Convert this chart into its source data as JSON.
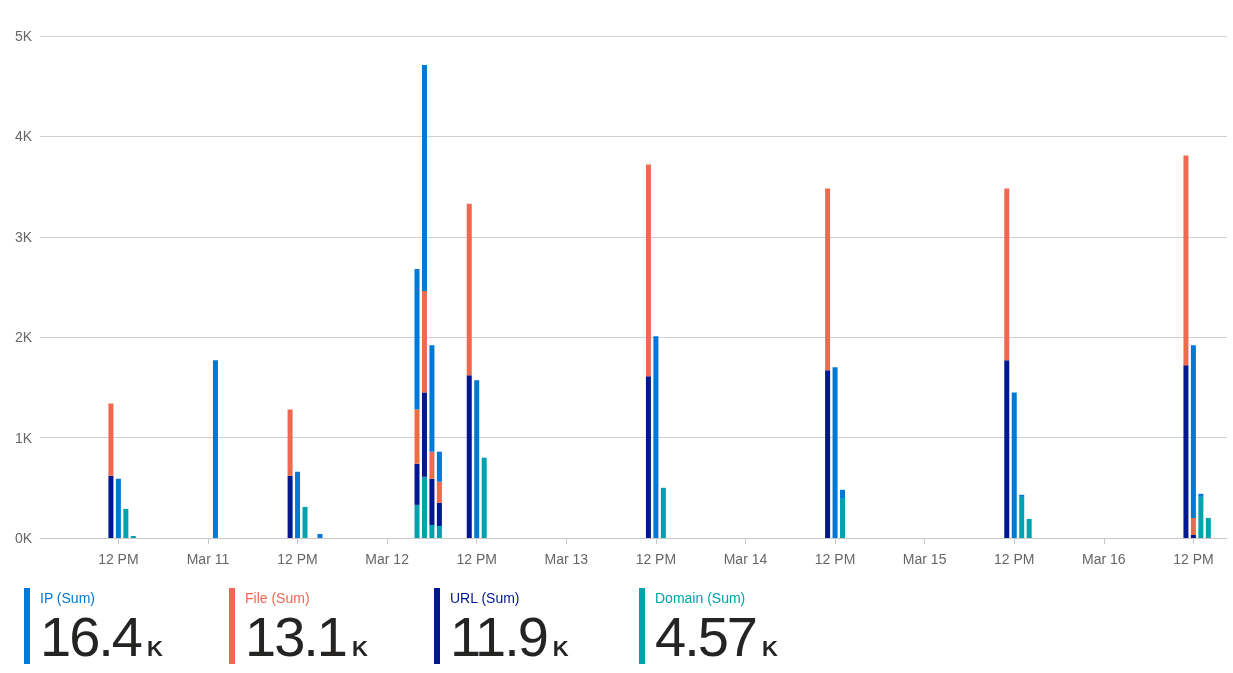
{
  "chart_data": {
    "type": "bar",
    "stacked": true,
    "categories": [
      null,
      null,
      null,
      null,
      null,
      null,
      null,
      null,
      null,
      null,
      "12 PM",
      null,
      null,
      null,
      null,
      null,
      null,
      null,
      null,
      null,
      null,
      null,
      "Mar 11",
      null,
      null,
      null,
      null,
      null,
      null,
      null,
      null,
      null,
      null,
      null,
      "12 PM",
      null,
      null,
      null,
      null,
      null,
      null,
      null,
      null,
      null,
      null,
      null,
      "Mar 12",
      null,
      null,
      null,
      null,
      null,
      null,
      null,
      null,
      null,
      null,
      null,
      "12 PM",
      null,
      null,
      null,
      null,
      null,
      null,
      null,
      null,
      null,
      null,
      null,
      "Mar 13",
      null,
      null,
      null,
      null,
      null,
      null,
      null,
      null,
      null,
      null,
      null,
      "12 PM",
      null,
      null,
      null,
      null,
      null,
      null,
      null,
      null,
      null,
      null,
      null,
      "Mar 14",
      null,
      null,
      null,
      null,
      null,
      null,
      null,
      null,
      null,
      null,
      null,
      "12 PM",
      null,
      null,
      null,
      null,
      null,
      null,
      null,
      null,
      null,
      null,
      null,
      "Mar 15",
      null,
      null,
      null,
      null,
      null,
      null,
      null,
      null,
      null,
      null,
      null,
      "12 PM",
      null,
      null,
      null,
      null,
      null,
      null,
      null,
      null,
      null,
      null,
      null,
      "Mar 16",
      null,
      null,
      null,
      null,
      null,
      null,
      null,
      null,
      null,
      null,
      null,
      "12 PM",
      null,
      null,
      null,
      null
    ],
    "series": [
      {
        "name": "Domain (Sum)",
        "color": "#00a2ad",
        "values": [
          null,
          null,
          null,
          null,
          null,
          null,
          null,
          null,
          null,
          null,
          null,
          290,
          20,
          null,
          null,
          null,
          null,
          null,
          null,
          null,
          null,
          null,
          null,
          null,
          null,
          null,
          null,
          null,
          null,
          null,
          null,
          null,
          null,
          null,
          null,
          310,
          null,
          null,
          null,
          null,
          null,
          null,
          null,
          null,
          null,
          null,
          null,
          null,
          null,
          null,
          330,
          610,
          130,
          120,
          null,
          null,
          null,
          null,
          null,
          800,
          null,
          null,
          null,
          null,
          null,
          null,
          null,
          null,
          null,
          null,
          null,
          null,
          null,
          null,
          null,
          null,
          null,
          null,
          null,
          null,
          null,
          null,
          null,
          500,
          null,
          null,
          null,
          null,
          null,
          null,
          null,
          null,
          null,
          null,
          null,
          null,
          null,
          null,
          null,
          null,
          null,
          null,
          null,
          null,
          null,
          null,
          null,
          390,
          null,
          null,
          null,
          null,
          null,
          null,
          null,
          null,
          null,
          null,
          null,
          null,
          null,
          null,
          null,
          null,
          null,
          null,
          null,
          null,
          null,
          null,
          null,
          410,
          190,
          null,
          null,
          null,
          null,
          null,
          null,
          null,
          null,
          null,
          null,
          null,
          null,
          null,
          null,
          null,
          null,
          null,
          null,
          null,
          null,
          null,
          null,
          410,
          200,
          null,
          null
        ]
      },
      {
        "name": "URL (Sum)",
        "color": "#00188f",
        "values": [
          null,
          null,
          null,
          null,
          null,
          null,
          null,
          null,
          null,
          620,
          null,
          null,
          null,
          null,
          null,
          null,
          null,
          null,
          null,
          null,
          null,
          null,
          null,
          null,
          null,
          null,
          null,
          null,
          null,
          null,
          null,
          null,
          null,
          620,
          null,
          null,
          null,
          null,
          null,
          null,
          null,
          null,
          null,
          null,
          null,
          null,
          null,
          null,
          null,
          null,
          410,
          840,
          460,
          230,
          null,
          null,
          null,
          1620,
          null,
          null,
          null,
          null,
          null,
          null,
          null,
          null,
          null,
          null,
          null,
          null,
          null,
          null,
          null,
          null,
          null,
          null,
          null,
          null,
          null,
          null,
          null,
          1610,
          null,
          null,
          null,
          null,
          null,
          null,
          null,
          null,
          null,
          null,
          null,
          null,
          null,
          null,
          null,
          null,
          null,
          null,
          null,
          null,
          null,
          null,
          null,
          1670,
          null,
          null,
          null,
          null,
          null,
          null,
          null,
          null,
          null,
          null,
          null,
          null,
          null,
          null,
          null,
          null,
          null,
          null,
          null,
          null,
          null,
          null,
          null,
          1770,
          null,
          null,
          null,
          null,
          null,
          null,
          null,
          null,
          null,
          null,
          null,
          null,
          null,
          null,
          null,
          null,
          null,
          null,
          null,
          null,
          null,
          null,
          null,
          1720,
          30,
          null,
          null,
          null,
          null
        ]
      },
      {
        "name": "File (Sum)",
        "color": "#ef6950",
        "values": [
          null,
          null,
          null,
          null,
          null,
          null,
          null,
          null,
          null,
          720,
          null,
          null,
          null,
          null,
          null,
          null,
          null,
          null,
          null,
          null,
          null,
          null,
          null,
          null,
          null,
          null,
          null,
          null,
          null,
          null,
          null,
          null,
          null,
          660,
          null,
          null,
          null,
          null,
          null,
          null,
          null,
          null,
          null,
          null,
          null,
          null,
          null,
          null,
          null,
          null,
          540,
          1010,
          270,
          210,
          null,
          null,
          null,
          1710,
          null,
          null,
          null,
          null,
          null,
          null,
          null,
          null,
          null,
          null,
          null,
          null,
          null,
          null,
          null,
          null,
          null,
          null,
          null,
          null,
          null,
          null,
          null,
          2110,
          null,
          null,
          null,
          null,
          null,
          null,
          null,
          null,
          null,
          null,
          null,
          null,
          null,
          null,
          null,
          null,
          null,
          null,
          null,
          null,
          null,
          null,
          null,
          1810,
          null,
          null,
          null,
          null,
          null,
          null,
          null,
          null,
          null,
          null,
          null,
          null,
          null,
          null,
          null,
          null,
          null,
          null,
          null,
          null,
          null,
          null,
          null,
          1710,
          null,
          null,
          null,
          null,
          null,
          null,
          null,
          null,
          null,
          null,
          null,
          null,
          null,
          null,
          null,
          null,
          null,
          null,
          null,
          null,
          null,
          null,
          null,
          2090,
          170,
          null,
          null,
          null,
          null
        ]
      },
      {
        "name": "IP (Sum)",
        "color": "#0078d4",
        "values": [
          null,
          null,
          null,
          null,
          null,
          null,
          null,
          null,
          null,
          null,
          590,
          null,
          null,
          null,
          null,
          null,
          null,
          null,
          null,
          null,
          null,
          null,
          null,
          1770,
          null,
          null,
          null,
          null,
          null,
          null,
          null,
          null,
          null,
          null,
          660,
          null,
          null,
          40,
          null,
          null,
          null,
          null,
          null,
          null,
          null,
          null,
          null,
          null,
          null,
          null,
          1400,
          2250,
          1060,
          300,
          null,
          null,
          null,
          null,
          1570,
          null,
          null,
          null,
          null,
          null,
          null,
          null,
          null,
          null,
          null,
          null,
          null,
          null,
          null,
          null,
          null,
          null,
          null,
          null,
          null,
          null,
          null,
          null,
          2010,
          null,
          null,
          null,
          null,
          null,
          null,
          null,
          null,
          null,
          null,
          null,
          null,
          null,
          null,
          null,
          null,
          null,
          null,
          null,
          null,
          null,
          null,
          null,
          1700,
          90,
          null,
          null,
          null,
          null,
          null,
          null,
          null,
          null,
          null,
          null,
          null,
          null,
          null,
          null,
          null,
          null,
          null,
          null,
          null,
          null,
          null,
          null,
          1450,
          20,
          null,
          null,
          null,
          null,
          null,
          null,
          null,
          null,
          null,
          null,
          null,
          null,
          null,
          null,
          null,
          null,
          null,
          null,
          null,
          null,
          null,
          null,
          1720,
          30,
          null,
          null,
          null
        ]
      }
    ],
    "ylim": [
      0,
      5000
    ],
    "yticks": [
      {
        "value": 0,
        "label": "0K"
      },
      {
        "value": 1000,
        "label": "1K"
      },
      {
        "value": 2000,
        "label": "2K"
      },
      {
        "value": 3000,
        "label": "3K"
      },
      {
        "value": 4000,
        "label": "4K"
      },
      {
        "value": 5000,
        "label": "5K"
      }
    ],
    "grid": "y",
    "legend": "bottom left",
    "annotations": [
      "16.4K",
      "13.1K",
      "11.9K",
      "4.57K"
    ]
  }
}
